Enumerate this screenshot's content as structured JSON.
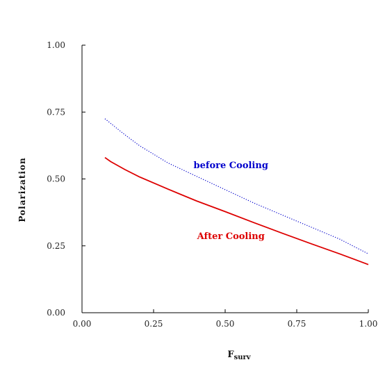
{
  "chart_data": {
    "type": "line",
    "title": "",
    "xlabel_main": "F",
    "xlabel_sub": "surv",
    "ylabel": "Polarization",
    "xlim": [
      0.0,
      1.0
    ],
    "ylim": [
      0.0,
      1.0
    ],
    "x_ticks": [
      "0.00",
      "0.25",
      "0.50",
      "0.75",
      "1.00"
    ],
    "y_ticks": [
      "0.00",
      "0.25",
      "0.50",
      "0.75",
      "1.00"
    ],
    "grid": false,
    "legend": "none",
    "series": [
      {
        "name": "before Cooling",
        "color": "#0000cc",
        "style": "dotted",
        "x": [
          0.08,
          0.15,
          0.2,
          0.3,
          0.4,
          0.5,
          0.6,
          0.7,
          0.8,
          0.9,
          1.0
        ],
        "y": [
          0.725,
          0.665,
          0.625,
          0.56,
          0.51,
          0.46,
          0.41,
          0.365,
          0.32,
          0.275,
          0.22
        ]
      },
      {
        "name": "After Cooling",
        "color": "#dd0000",
        "style": "solid",
        "x": [
          0.08,
          0.1,
          0.15,
          0.2,
          0.3,
          0.4,
          0.5,
          0.6,
          0.7,
          0.8,
          0.9,
          1.0
        ],
        "y": [
          0.58,
          0.565,
          0.535,
          0.508,
          0.462,
          0.418,
          0.378,
          0.337,
          0.297,
          0.258,
          0.22,
          0.18
        ]
      }
    ],
    "annotations": [
      {
        "text": "before Cooling",
        "x": 0.52,
        "y": 0.54,
        "color": "#0000cc"
      },
      {
        "text": "After Cooling",
        "x": 0.52,
        "y": 0.275,
        "color": "#dd0000"
      }
    ]
  }
}
